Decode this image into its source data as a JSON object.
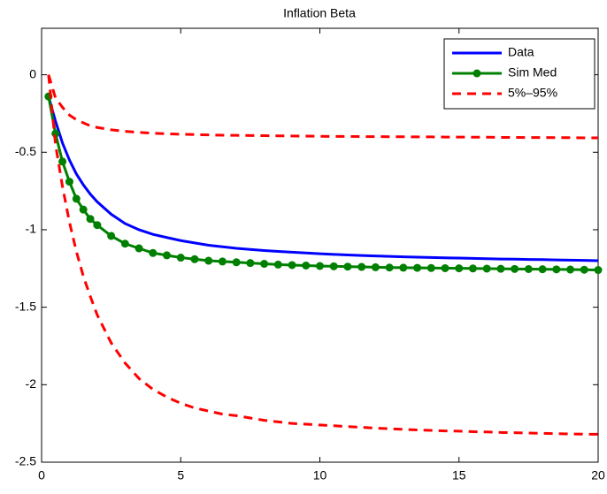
{
  "chart_data": {
    "type": "line",
    "title": "Inflation Beta",
    "x": [
      0.25,
      0.5,
      0.75,
      1,
      1.25,
      1.5,
      1.75,
      2,
      2.5,
      3,
      3.5,
      4,
      4.5,
      5,
      5.5,
      6,
      6.5,
      7,
      7.5,
      8,
      8.5,
      9,
      9.5,
      10,
      10.5,
      11,
      11.5,
      12,
      12.5,
      13,
      13.5,
      14,
      14.5,
      15,
      15.5,
      16,
      16.5,
      17,
      17.5,
      18,
      18.5,
      19,
      19.5,
      20
    ],
    "series": [
      {
        "name": "Data",
        "color": "#0000ff",
        "dash": false,
        "marker": false,
        "values": [
          -0.14,
          -0.3,
          -0.44,
          -0.55,
          -0.64,
          -0.71,
          -0.77,
          -0.82,
          -0.9,
          -0.96,
          -1.0,
          -1.03,
          -1.05,
          -1.07,
          -1.085,
          -1.1,
          -1.11,
          -1.12,
          -1.127,
          -1.134,
          -1.14,
          -1.145,
          -1.15,
          -1.155,
          -1.159,
          -1.163,
          -1.166,
          -1.169,
          -1.172,
          -1.175,
          -1.177,
          -1.179,
          -1.181,
          -1.183,
          -1.185,
          -1.187,
          -1.189,
          -1.19,
          -1.192,
          -1.193,
          -1.195,
          -1.196,
          -1.198,
          -1.2
        ]
      },
      {
        "name": "Sim Med",
        "color": "#008000",
        "dash": false,
        "marker": true,
        "values": [
          -0.14,
          -0.38,
          -0.56,
          -0.69,
          -0.8,
          -0.87,
          -0.93,
          -0.97,
          -1.04,
          -1.09,
          -1.12,
          -1.15,
          -1.165,
          -1.18,
          -1.19,
          -1.2,
          -1.205,
          -1.21,
          -1.215,
          -1.22,
          -1.225,
          -1.228,
          -1.231,
          -1.234,
          -1.236,
          -1.238,
          -1.24,
          -1.242,
          -1.244,
          -1.245,
          -1.246,
          -1.247,
          -1.248,
          -1.249,
          -1.25,
          -1.251,
          -1.252,
          -1.253,
          -1.254,
          -1.255,
          -1.256,
          -1.257,
          -1.258,
          -1.26
        ]
      },
      {
        "name": "5%–95%",
        "color": "#ff0000",
        "dash": true,
        "marker": false,
        "values": [
          0,
          -0.15,
          -0.21,
          -0.26,
          -0.29,
          -0.31,
          -0.33,
          -0.34,
          -0.355,
          -0.365,
          -0.372,
          -0.377,
          -0.381,
          -0.384,
          -0.386,
          -0.388,
          -0.39,
          -0.391,
          -0.392,
          -0.393,
          -0.394,
          -0.395,
          -0.396,
          -0.397,
          -0.398,
          -0.398,
          -0.399,
          -0.399,
          -0.4,
          -0.4,
          -0.401,
          -0.401,
          -0.402,
          -0.402,
          -0.403,
          -0.403,
          -0.404,
          -0.404,
          -0.405,
          -0.405,
          -0.406,
          -0.406,
          -0.407,
          -0.407
        ]
      },
      {
        "color": "#ff0000",
        "dash": true,
        "marker": false,
        "values": [
          0,
          -0.45,
          -0.72,
          -0.95,
          -1.14,
          -1.3,
          -1.43,
          -1.55,
          -1.73,
          -1.86,
          -1.96,
          -2.03,
          -2.08,
          -2.12,
          -2.15,
          -2.17,
          -2.19,
          -2.2,
          -2.215,
          -2.23,
          -2.24,
          -2.25,
          -2.255,
          -2.26,
          -2.265,
          -2.27,
          -2.275,
          -2.28,
          -2.284,
          -2.288,
          -2.292,
          -2.295,
          -2.298,
          -2.3,
          -2.303,
          -2.305,
          -2.308,
          -2.31,
          -2.312,
          -2.314,
          -2.316,
          -2.318,
          -2.319,
          -2.32
        ]
      }
    ],
    "xlim": [
      0,
      20
    ],
    "xticks": [
      0,
      5,
      10,
      15,
      20
    ],
    "ylim": [
      -2.5,
      0.3
    ],
    "yticks": [
      -2.5,
      -2,
      -1.5,
      -1,
      -0.5,
      0
    ],
    "legend": "northeast",
    "grid": false
  }
}
